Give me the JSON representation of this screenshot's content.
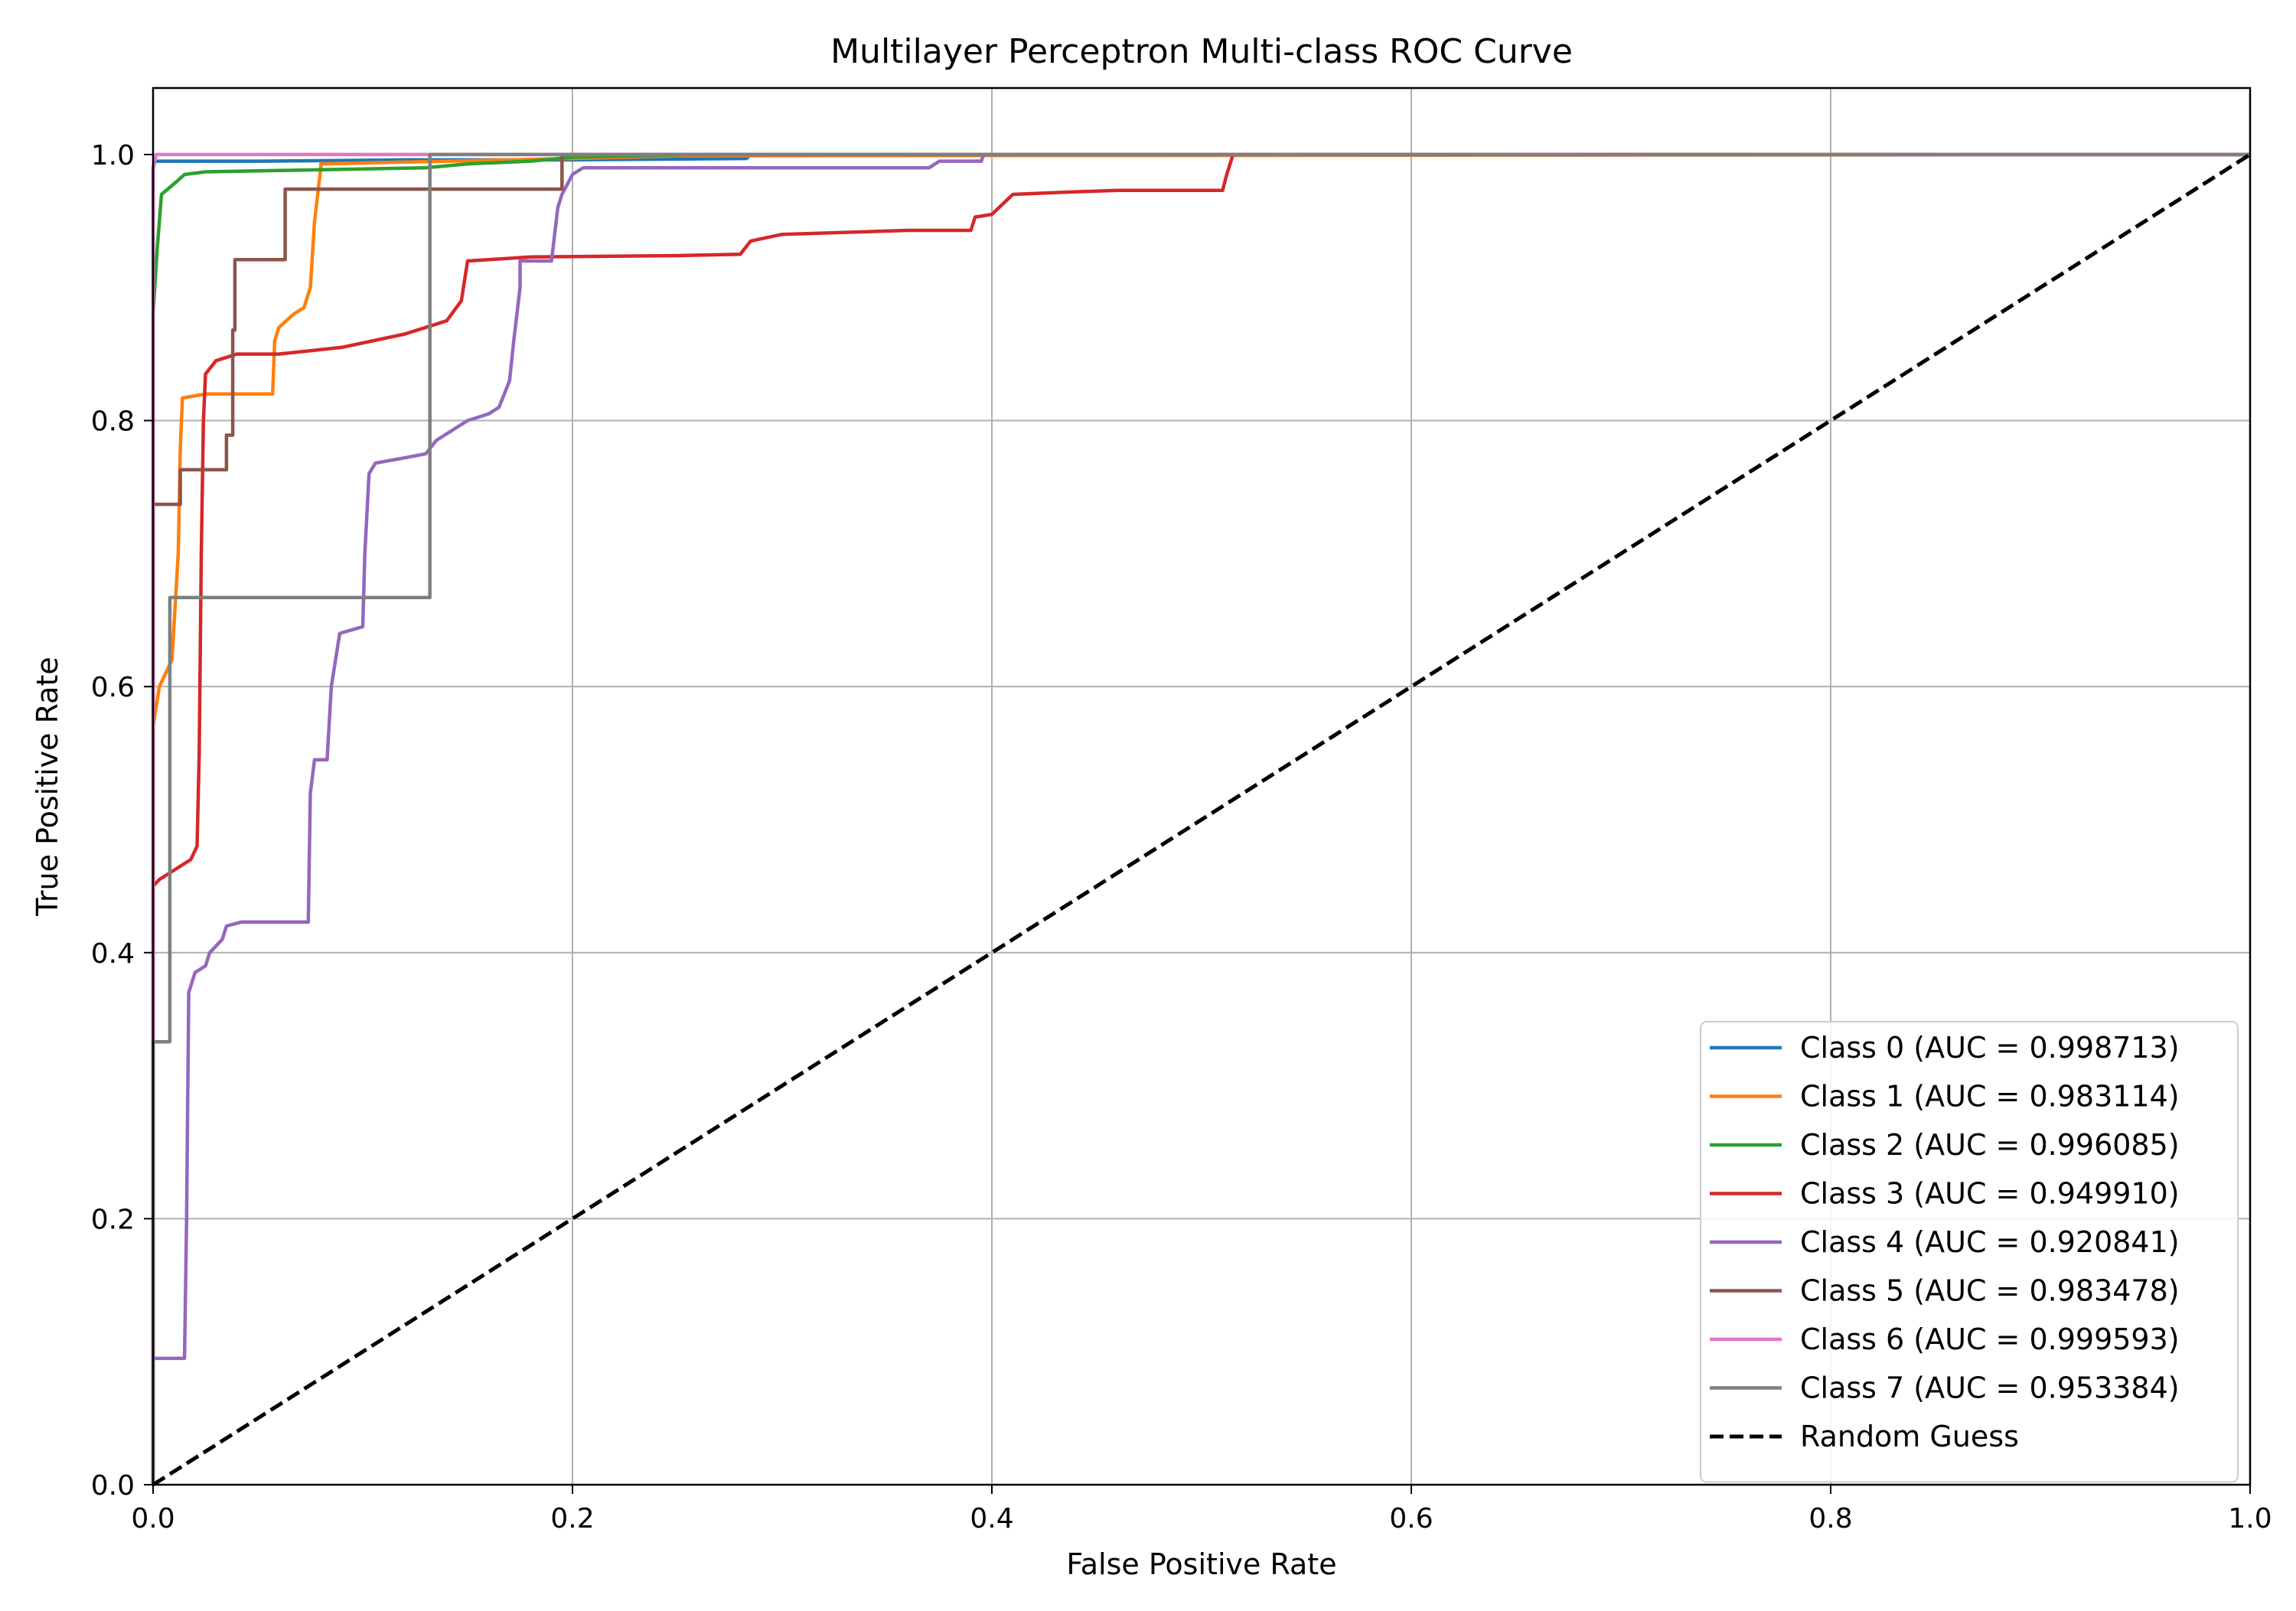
{
  "chart_data": {
    "type": "line",
    "title": "Multilayer Perceptron Multi-class ROC Curve",
    "xlabel": "False Positive Rate",
    "ylabel": "True Positive Rate",
    "xlim": [
      0.0,
      1.0
    ],
    "ylim": [
      0.0,
      1.05
    ],
    "xticks": [
      "0.0",
      "0.2",
      "0.4",
      "0.6",
      "0.8",
      "1.0"
    ],
    "yticks": [
      "0.0",
      "0.2",
      "0.4",
      "0.6",
      "0.8",
      "1.0"
    ],
    "grid": true,
    "legend_position": "lower-right",
    "series": [
      {
        "name": "Class 0 (AUC = 0.998713)",
        "color": "#1f77b4",
        "style": "solid",
        "points": [
          [
            0,
            0
          ],
          [
            0,
            0.99
          ],
          [
            0.001,
            0.995
          ],
          [
            0.05,
            0.995
          ],
          [
            0.12,
            0.996
          ],
          [
            0.2,
            0.996
          ],
          [
            0.283,
            0.997
          ],
          [
            0.285,
            1.0
          ],
          [
            1.0,
            1.0
          ]
        ]
      },
      {
        "name": "Class 1 (AUC = 0.983114)",
        "color": "#ff7f0e",
        "style": "solid",
        "points": [
          [
            0,
            0
          ],
          [
            0,
            0.57
          ],
          [
            0.003,
            0.6
          ],
          [
            0.009,
            0.62
          ],
          [
            0.012,
            0.7
          ],
          [
            0.013,
            0.78
          ],
          [
            0.014,
            0.817
          ],
          [
            0.025,
            0.82
          ],
          [
            0.057,
            0.82
          ],
          [
            0.058,
            0.86
          ],
          [
            0.06,
            0.87
          ],
          [
            0.067,
            0.88
          ],
          [
            0.072,
            0.885
          ],
          [
            0.075,
            0.9
          ],
          [
            0.077,
            0.95
          ],
          [
            0.08,
            0.99
          ],
          [
            0.08,
            0.993
          ],
          [
            0.2,
            0.997
          ],
          [
            0.25,
            0.999
          ],
          [
            1.0,
            1.0
          ]
        ]
      },
      {
        "name": "Class 2 (AUC = 0.996085)",
        "color": "#2ca02c",
        "style": "solid",
        "points": [
          [
            0,
            0
          ],
          [
            0,
            0.88
          ],
          [
            0.002,
            0.93
          ],
          [
            0.004,
            0.97
          ],
          [
            0.01,
            0.978
          ],
          [
            0.015,
            0.985
          ],
          [
            0.025,
            0.987
          ],
          [
            0.06,
            0.988
          ],
          [
            0.13,
            0.99
          ],
          [
            0.15,
            0.993
          ],
          [
            0.18,
            0.995
          ],
          [
            0.2,
            0.998
          ],
          [
            0.26,
            1.0
          ],
          [
            1.0,
            1.0
          ]
        ]
      },
      {
        "name": "Class 3 (AUC = 0.949910)",
        "color": "#d62728",
        "style": "solid",
        "points": [
          [
            0,
            0
          ],
          [
            0,
            0.45
          ],
          [
            0.003,
            0.455
          ],
          [
            0.008,
            0.46
          ],
          [
            0.018,
            0.47
          ],
          [
            0.021,
            0.48
          ],
          [
            0.022,
            0.55
          ],
          [
            0.023,
            0.7
          ],
          [
            0.024,
            0.8
          ],
          [
            0.025,
            0.835
          ],
          [
            0.03,
            0.845
          ],
          [
            0.04,
            0.85
          ],
          [
            0.06,
            0.85
          ],
          [
            0.09,
            0.855
          ],
          [
            0.12,
            0.865
          ],
          [
            0.14,
            0.875
          ],
          [
            0.147,
            0.89
          ],
          [
            0.15,
            0.92
          ],
          [
            0.18,
            0.923
          ],
          [
            0.25,
            0.924
          ],
          [
            0.28,
            0.925
          ],
          [
            0.285,
            0.935
          ],
          [
            0.3,
            0.94
          ],
          [
            0.36,
            0.943
          ],
          [
            0.39,
            0.943
          ],
          [
            0.392,
            0.953
          ],
          [
            0.4,
            0.955
          ],
          [
            0.41,
            0.97
          ],
          [
            0.44,
            0.972
          ],
          [
            0.46,
            0.973
          ],
          [
            0.51,
            0.973
          ],
          [
            0.512,
            0.985
          ],
          [
            0.515,
            1.0
          ],
          [
            1.0,
            1.0
          ]
        ]
      },
      {
        "name": "Class 4 (AUC = 0.920841)",
        "color": "#9467bd",
        "style": "solid",
        "points": [
          [
            0,
            0
          ],
          [
            0,
            0.095
          ],
          [
            0.015,
            0.095
          ],
          [
            0.016,
            0.2
          ],
          [
            0.017,
            0.37
          ],
          [
            0.02,
            0.385
          ],
          [
            0.025,
            0.39
          ],
          [
            0.027,
            0.4
          ],
          [
            0.033,
            0.41
          ],
          [
            0.035,
            0.42
          ],
          [
            0.042,
            0.423
          ],
          [
            0.07,
            0.423
          ],
          [
            0.074,
            0.423
          ],
          [
            0.075,
            0.52
          ],
          [
            0.077,
            0.545
          ],
          [
            0.083,
            0.545
          ],
          [
            0.085,
            0.6
          ],
          [
            0.089,
            0.64
          ],
          [
            0.1,
            0.645
          ],
          [
            0.101,
            0.7
          ],
          [
            0.103,
            0.76
          ],
          [
            0.106,
            0.768
          ],
          [
            0.12,
            0.772
          ],
          [
            0.13,
            0.775
          ],
          [
            0.135,
            0.785
          ],
          [
            0.14,
            0.79
          ],
          [
            0.15,
            0.8
          ],
          [
            0.16,
            0.805
          ],
          [
            0.165,
            0.81
          ],
          [
            0.17,
            0.83
          ],
          [
            0.172,
            0.86
          ],
          [
            0.175,
            0.9
          ],
          [
            0.175,
            0.92
          ],
          [
            0.19,
            0.92
          ],
          [
            0.193,
            0.96
          ],
          [
            0.195,
            0.97
          ],
          [
            0.2,
            0.985
          ],
          [
            0.205,
            0.99
          ],
          [
            0.25,
            0.99
          ],
          [
            0.37,
            0.99
          ],
          [
            0.375,
            0.995
          ],
          [
            0.395,
            0.995
          ],
          [
            0.396,
            1.0
          ],
          [
            1.0,
            1.0
          ]
        ]
      },
      {
        "name": "Class 5 (AUC = 0.983478)",
        "color": "#8c564b",
        "style": "solid",
        "points": [
          [
            0,
            0
          ],
          [
            0,
            0.737
          ],
          [
            0.013,
            0.737
          ],
          [
            0.013,
            0.763
          ],
          [
            0.035,
            0.763
          ],
          [
            0.035,
            0.789
          ],
          [
            0.038,
            0.789
          ],
          [
            0.038,
            0.868
          ],
          [
            0.039,
            0.868
          ],
          [
            0.039,
            0.921
          ],
          [
            0.063,
            0.921
          ],
          [
            0.063,
            0.947
          ],
          [
            0.063,
            0.974
          ],
          [
            0.195,
            0.974
          ],
          [
            0.195,
            1.0
          ],
          [
            1.0,
            1.0
          ]
        ]
      },
      {
        "name": "Class 6 (AUC = 0.999593)",
        "color": "#e377c2",
        "style": "solid",
        "points": [
          [
            0,
            0
          ],
          [
            0,
            0.99
          ],
          [
            0.0015,
            1.0
          ],
          [
            1.0,
            1.0
          ]
        ]
      },
      {
        "name": "Class 7 (AUC = 0.953384)",
        "color": "#7f7f7f",
        "style": "solid",
        "points": [
          [
            0,
            0
          ],
          [
            0,
            0.333
          ],
          [
            0.008,
            0.333
          ],
          [
            0.008,
            0.667
          ],
          [
            0.132,
            0.667
          ],
          [
            0.132,
            1.0
          ],
          [
            1.0,
            1.0
          ]
        ]
      },
      {
        "name": "Random Guess",
        "color": "#000000",
        "style": "dashed",
        "points": [
          [
            0,
            0
          ],
          [
            1,
            1
          ]
        ]
      }
    ]
  }
}
